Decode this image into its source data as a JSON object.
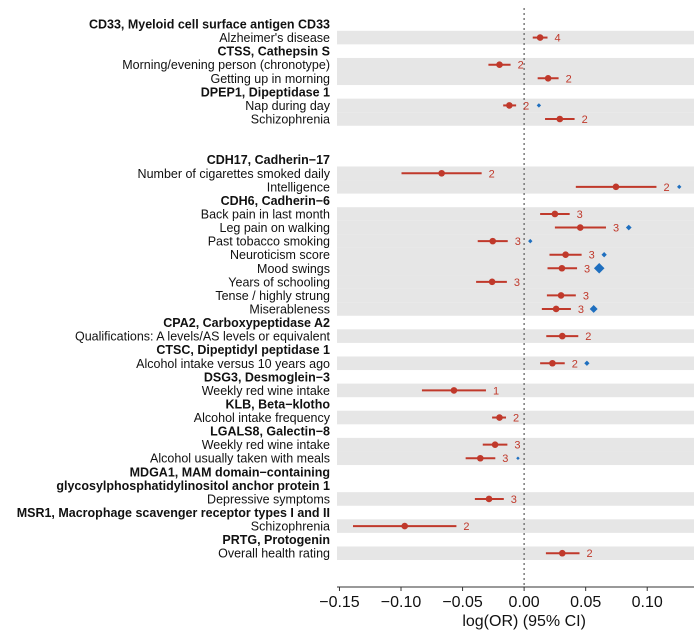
{
  "chart_data": {
    "type": "forest",
    "xlabel": "log(OR) (95% CI)",
    "xlim": [
      -0.152,
      0.138
    ],
    "xticks": [
      -0.15,
      -0.1,
      -0.05,
      0.0,
      0.05,
      0.1
    ],
    "xtick_labels": [
      "−0.15",
      "−0.10",
      "−0.05",
      "0.00",
      "0.05",
      "0.10"
    ],
    "reference_line": 0,
    "colors": {
      "estimate": "#c0392b",
      "diamond": "#1f6fbf",
      "band": "#e6e6e6"
    },
    "rows": [
      {
        "type": "header",
        "label": "CD33, Myeloid cell surface antigen CD33"
      },
      {
        "type": "trait",
        "label": "Alzheimer's disease",
        "est": 0.013,
        "lo": 0.007,
        "hi": 0.019,
        "n": "4"
      },
      {
        "type": "header",
        "label": "CTSS, Cathepsin S"
      },
      {
        "type": "trait",
        "label": "Morning/evening person (chronotype)",
        "est": -0.02,
        "lo": -0.029,
        "hi": -0.011,
        "n": "2"
      },
      {
        "type": "trait",
        "label": "Getting up in morning",
        "est": 0.0195,
        "lo": 0.011,
        "hi": 0.028,
        "n": "2"
      },
      {
        "type": "header",
        "label": "DPEP1, Dipeptidase 1"
      },
      {
        "type": "trait",
        "label": "Nap during day",
        "est": -0.012,
        "lo": -0.017,
        "hi": -0.0065,
        "n": "2",
        "diamond": 0.012,
        "dsize": 1
      },
      {
        "type": "trait",
        "label": "Schizophrenia",
        "est": 0.029,
        "lo": 0.017,
        "hi": 0.041,
        "n": "2"
      },
      {
        "type": "blank"
      },
      {
        "type": "blank"
      },
      {
        "type": "header",
        "label": "CDH17, Cadherin−17"
      },
      {
        "type": "trait",
        "label": "Number of cigarettes smoked daily",
        "est": -0.067,
        "lo": -0.0996,
        "hi": -0.0345,
        "n": "2"
      },
      {
        "type": "trait",
        "label": "Intelligence",
        "est": 0.0746,
        "lo": 0.042,
        "hi": 0.1075,
        "n": "2",
        "diamond": 0.126,
        "dsize": 1
      },
      {
        "type": "header",
        "label": "CDH6,  Cadherin−6"
      },
      {
        "type": "trait",
        "label": "Back pain in last month",
        "est": 0.025,
        "lo": 0.013,
        "hi": 0.037,
        "n": "3"
      },
      {
        "type": "trait",
        "label": "Leg pain on walking",
        "est": 0.0456,
        "lo": 0.025,
        "hi": 0.0665,
        "n": "3",
        "diamond": 0.085,
        "dsize": 1.3
      },
      {
        "type": "trait",
        "label": "Past tobacco smoking",
        "est": -0.0255,
        "lo": -0.0377,
        "hi": -0.0133,
        "n": "3",
        "diamond": 0.005,
        "dsize": 1
      },
      {
        "type": "trait",
        "label": "Neuroticism score",
        "est": 0.0337,
        "lo": 0.0206,
        "hi": 0.0467,
        "n": "3",
        "diamond": 0.065,
        "dsize": 1.2
      },
      {
        "type": "trait",
        "label": "Mood swings",
        "est": 0.0307,
        "lo": 0.019,
        "hi": 0.043,
        "n": "3",
        "diamond": 0.061,
        "dsize": 2.4
      },
      {
        "type": "trait",
        "label": "Years of schooling",
        "est": -0.026,
        "lo": -0.039,
        "hi": -0.014,
        "n": "3"
      },
      {
        "type": "trait",
        "label": "Tense / highly strung",
        "est": 0.03,
        "lo": 0.0185,
        "hi": 0.042,
        "n": "3"
      },
      {
        "type": "trait",
        "label": "Miserableness",
        "est": 0.026,
        "lo": 0.0144,
        "hi": 0.038,
        "n": "3",
        "diamond": 0.0565,
        "dsize": 1.8
      },
      {
        "type": "header",
        "label": "CPA2, Carboxypeptidase A2"
      },
      {
        "type": "trait",
        "label": "Qualifications: A levels/AS levels or equivalent",
        "est": 0.031,
        "lo": 0.018,
        "hi": 0.044,
        "n": "2"
      },
      {
        "type": "header",
        "label": "CTSC, Dipeptidyl peptidase 1"
      },
      {
        "type": "trait",
        "label": "Alcohol intake versus 10 years ago",
        "est": 0.023,
        "lo": 0.013,
        "hi": 0.033,
        "n": "2",
        "diamond": 0.051,
        "dsize": 1.2
      },
      {
        "type": "header",
        "label": "DSG3, Desmoglein−3"
      },
      {
        "type": "trait",
        "label": "Weekly red wine intake",
        "est": -0.057,
        "lo": -0.083,
        "hi": -0.031,
        "n": "1"
      },
      {
        "type": "header",
        "label": "KLB, Beta−klotho"
      },
      {
        "type": "trait",
        "label": "Alcohol intake frequency",
        "est": -0.02,
        "lo": -0.026,
        "hi": -0.0147,
        "n": "2"
      },
      {
        "type": "header",
        "label": "LGALS8, Galectin−8"
      },
      {
        "type": "trait",
        "label": "Weekly red wine intake",
        "est": -0.0236,
        "lo": -0.0336,
        "hi": -0.0136,
        "n": "3"
      },
      {
        "type": "trait",
        "label": "Alcohol usually taken with meals",
        "est": -0.0356,
        "lo": -0.0475,
        "hi": -0.0234,
        "n": "3",
        "diamond": -0.005,
        "dsize": 0.8
      },
      {
        "type": "header",
        "label": "MDGA1, MAM domain−containing"
      },
      {
        "type": "header",
        "label": "glycosylphosphatidylinositol anchor protein 1"
      },
      {
        "type": "trait",
        "label": "Depressive symptoms",
        "est": -0.0285,
        "lo": -0.04,
        "hi": -0.0165,
        "n": "3"
      },
      {
        "type": "header",
        "label": "MSR1, Macrophage scavenger receptor types I and II"
      },
      {
        "type": "trait",
        "label": "Schizophrenia",
        "est": -0.097,
        "lo": -0.139,
        "hi": -0.055,
        "n": "2"
      },
      {
        "type": "header",
        "label": "PRTG, Protogenin"
      },
      {
        "type": "trait",
        "label": "Overall health rating",
        "est": 0.031,
        "lo": 0.0177,
        "hi": 0.045,
        "n": "2"
      }
    ]
  }
}
